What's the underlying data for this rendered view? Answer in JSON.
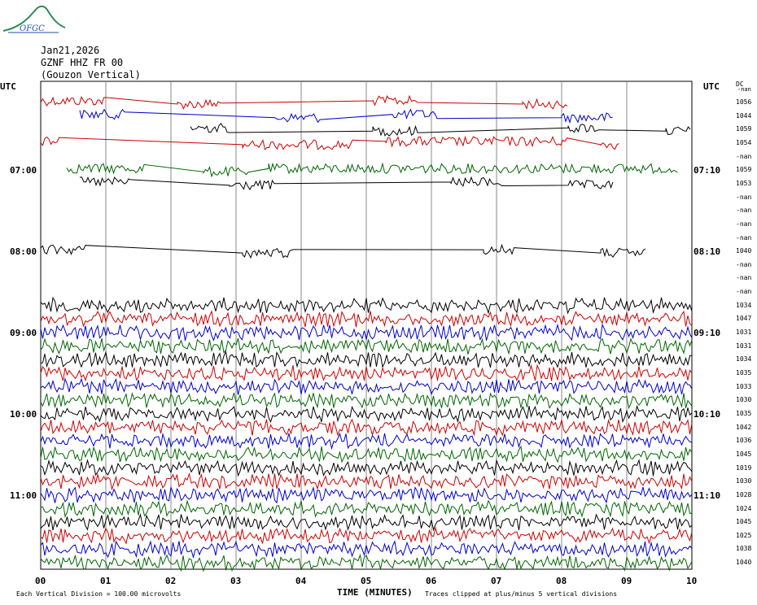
{
  "logo": {
    "text": "OFGC"
  },
  "header": {
    "date": "Jan21,2026",
    "station": "GZNF HHZ FR 00",
    "location": "(Gouzon Vertical)"
  },
  "axis": {
    "left_title": "UTC",
    "right_title": "UTC",
    "dc_title": "DC",
    "dc_subtitle": "-nan",
    "xlabel": "TIME (MINUTES)",
    "left_hour_labels": [
      "07:00",
      "08:00",
      "09:00",
      "10:00",
      "11:00"
    ],
    "right_hour_labels": [
      "07:10",
      "08:10",
      "09:10",
      "10:10",
      "11:10"
    ]
  },
  "footer": {
    "division": "Each Vertical Division =  100.00 microvolts",
    "clip_note": "Traces clipped at plus/minus 5 vertical divisions"
  },
  "colors": {
    "trace_cycle": [
      "#cc0000",
      "#0000cc",
      "#000000",
      "#cc0000",
      "#006600",
      "#000000"
    ],
    "grid": "#888888"
  },
  "chart_data": {
    "type": "line",
    "title": "",
    "xlabel": "TIME (MINUTES)",
    "x_ticks": [
      "00",
      "01",
      "02",
      "03",
      "04",
      "05",
      "06",
      "07",
      "08",
      "09",
      "10"
    ],
    "xlim": [
      0,
      10
    ],
    "rows": [
      {
        "dc": "1056",
        "color": "#cc0000",
        "segments": [
          [
            0,
            1
          ],
          [
            2.1,
            2.8
          ],
          [
            5.1,
            5.8
          ],
          [
            7.4,
            8.1
          ]
        ]
      },
      {
        "dc": "1044",
        "color": "#0000cc",
        "segments": [
          [
            0.6,
            1.3
          ],
          [
            3.6,
            4.3
          ],
          [
            5.4,
            6.1
          ],
          [
            8.0,
            8.8
          ]
        ]
      },
      {
        "dc": "1059",
        "color": "#000000",
        "segments": [
          [
            2.3,
            2.9
          ],
          [
            5.1,
            5.8
          ],
          [
            8.1,
            8.6
          ],
          [
            9.6,
            10
          ]
        ]
      },
      {
        "dc": "1054",
        "color": "#cc0000",
        "segments": [
          [
            0,
            0.3
          ],
          [
            3.1,
            4.8
          ],
          [
            5.3,
            8.1
          ],
          [
            8.6,
            8.9
          ]
        ]
      },
      {
        "dc": "-nan",
        "color": "#006600",
        "segments": []
      },
      {
        "dc": "1059",
        "color": "#006600",
        "segments": [
          [
            0.4,
            1.6
          ],
          [
            2.5,
            3.2
          ],
          [
            3.5,
            9.8
          ]
        ]
      },
      {
        "dc": "1053",
        "color": "#000000",
        "segments": [
          [
            0.6,
            1.4
          ],
          [
            2.9,
            3.6
          ],
          [
            6.3,
            7.1
          ],
          [
            8.1,
            8.8
          ]
        ]
      },
      {
        "dc": "-nan",
        "color": "#000000",
        "segments": []
      },
      {
        "dc": "-nan",
        "color": "#000000",
        "segments": []
      },
      {
        "dc": "-nan",
        "color": "#000000",
        "segments": []
      },
      {
        "dc": "-nan",
        "color": "#000000",
        "segments": []
      },
      {
        "dc": "1040",
        "color": "#000000",
        "segments": [
          [
            0,
            0.7
          ],
          [
            3.1,
            3.9
          ],
          [
            6.8,
            7.3
          ],
          [
            8.6,
            9.3
          ]
        ]
      },
      {
        "dc": "-nan",
        "color": "#000000",
        "segments": []
      },
      {
        "dc": "-nan",
        "color": "#000000",
        "segments": []
      },
      {
        "dc": "-nan",
        "color": "#000000",
        "segments": []
      },
      {
        "dc": "1034",
        "color": "#000000",
        "segments": [
          [
            0,
            10
          ]
        ]
      },
      {
        "dc": "1047",
        "color": "#cc0000",
        "segments": [
          [
            0,
            10
          ]
        ]
      },
      {
        "dc": "1031",
        "color": "#0000cc",
        "segments": [
          [
            0,
            10
          ]
        ]
      },
      {
        "dc": "1031",
        "color": "#006600",
        "segments": [
          [
            0,
            10
          ]
        ]
      },
      {
        "dc": "1034",
        "color": "#000000",
        "segments": [
          [
            0,
            10
          ]
        ]
      },
      {
        "dc": "1035",
        "color": "#cc0000",
        "segments": [
          [
            0,
            10
          ]
        ]
      },
      {
        "dc": "1033",
        "color": "#0000cc",
        "segments": [
          [
            0,
            10
          ]
        ]
      },
      {
        "dc": "1030",
        "color": "#006600",
        "segments": [
          [
            0,
            10
          ]
        ]
      },
      {
        "dc": "1035",
        "color": "#000000",
        "segments": [
          [
            0,
            10
          ]
        ]
      },
      {
        "dc": "1042",
        "color": "#cc0000",
        "segments": [
          [
            0,
            10
          ]
        ]
      },
      {
        "dc": "1036",
        "color": "#0000cc",
        "segments": [
          [
            0,
            10
          ]
        ]
      },
      {
        "dc": "1045",
        "color": "#006600",
        "segments": [
          [
            0,
            10
          ]
        ]
      },
      {
        "dc": "1019",
        "color": "#000000",
        "segments": [
          [
            0,
            10
          ]
        ]
      },
      {
        "dc": "1030",
        "color": "#cc0000",
        "segments": [
          [
            0,
            10
          ]
        ]
      },
      {
        "dc": "1028",
        "color": "#0000cc",
        "segments": [
          [
            0,
            10
          ]
        ]
      },
      {
        "dc": "1024",
        "color": "#006600",
        "segments": [
          [
            0,
            10
          ]
        ]
      },
      {
        "dc": "1045",
        "color": "#000000",
        "segments": [
          [
            0,
            10
          ]
        ]
      },
      {
        "dc": "1025",
        "color": "#cc0000",
        "segments": [
          [
            0,
            10
          ]
        ]
      },
      {
        "dc": "1038",
        "color": "#0000cc",
        "segments": [
          [
            0,
            10
          ]
        ]
      },
      {
        "dc": "1040",
        "color": "#006600",
        "segments": [
          [
            0,
            10
          ]
        ]
      }
    ]
  }
}
